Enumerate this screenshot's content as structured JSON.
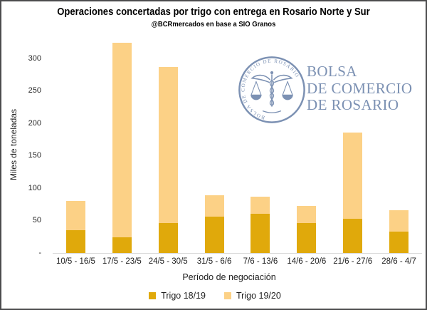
{
  "title": "Operaciones concertadas por trigo con entrega en Rosario Norte y Sur",
  "subtitle": "@BCRmercados en base a SIO Granos",
  "colors": {
    "trigo_1819": "#E0A90B",
    "trigo_1920": "#FCD186",
    "logo_blue": "#7C91B3",
    "axis_line": "#D9D9D9",
    "text": "#1F1F1F"
  },
  "y_axis": {
    "title": "Miles de toneladas",
    "zero_label": "-"
  },
  "x_axis": {
    "title": "Período de negociación"
  },
  "legend": [
    {
      "label": "Trigo 18/19",
      "color": "#E0A90B"
    },
    {
      "label": "Trigo 19/20",
      "color": "#FCD186"
    }
  ],
  "logo": {
    "seal_text": "BOLSA DE COMERCIO DE ROSARIO",
    "lines": [
      "BOLSA",
      "DE COMERCIO",
      "DE ROSARIO"
    ]
  },
  "chart_data": {
    "type": "bar",
    "stacked": true,
    "title": "Operaciones concertadas por trigo con entrega en Rosario Norte y Sur",
    "subtitle": "@BCRmercados en base a SIO Granos",
    "xlabel": "Período de negociación",
    "ylabel": "Miles de toneladas",
    "categories": [
      "10/5 - 16/5",
      "17/5 - 23/5",
      "24/5 - 30/5",
      "31/5 - 6/6",
      "7/6 - 13/6",
      "14/6 - 20/6",
      "21/6 - 27/6",
      "28/6 - 4/7"
    ],
    "series": [
      {
        "name": "Trigo 18/19",
        "color": "#E0A90B",
        "values": [
          35,
          24,
          46,
          56,
          61,
          46,
          53,
          33
        ]
      },
      {
        "name": "Trigo 19/20",
        "color": "#FCD186",
        "values": [
          45,
          300,
          241,
          33,
          26,
          27,
          133,
          33
        ]
      }
    ],
    "totals": [
      80,
      324,
      287,
      89,
      87,
      73,
      186,
      66
    ],
    "yticks": [
      0,
      50,
      100,
      150,
      200,
      250,
      300
    ],
    "ytick_labels": [
      "-",
      "50",
      "100",
      "150",
      "200",
      "250",
      "300"
    ],
    "ylim": [
      0,
      333
    ],
    "grid": false,
    "legend_position": "bottom"
  }
}
